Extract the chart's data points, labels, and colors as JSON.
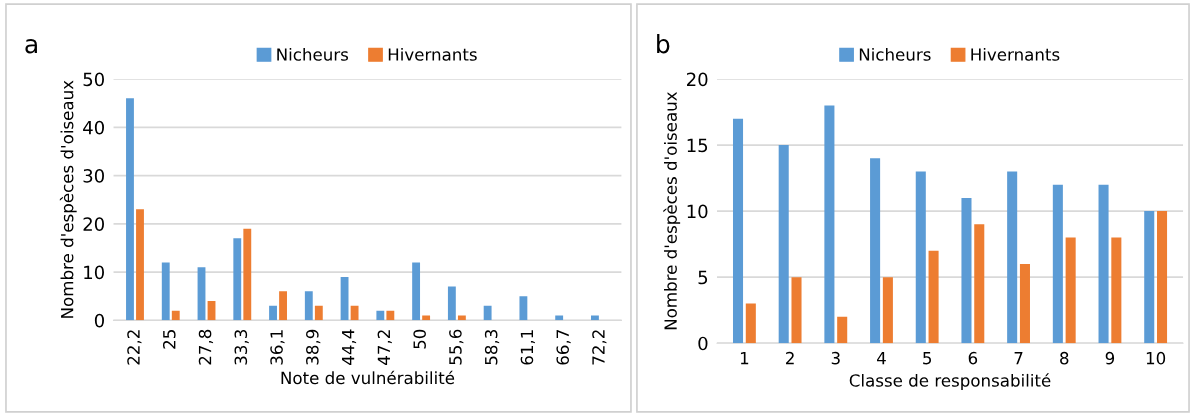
{
  "chart_data": [
    {
      "type": "bar",
      "title": "a",
      "xlabel": "Note de vulnérabilité",
      "ylabel": "Nombre d'espèces d'oiseaux",
      "categories": [
        "22,2",
        "25",
        "27,8",
        "33,3",
        "36,1",
        "38,9",
        "44,4",
        "47,2",
        "50",
        "55,6",
        "58,3",
        "61,1",
        "66,7",
        "72,2"
      ],
      "series": [
        {
          "name": "Nicheurs",
          "color": "#5b9bd5",
          "values": [
            46,
            12,
            11,
            17,
            3,
            6,
            9,
            2,
            12,
            7,
            3,
            5,
            1,
            1
          ]
        },
        {
          "name": "Hivernants",
          "color": "#ed7d31",
          "values": [
            23,
            2,
            4,
            19,
            6,
            3,
            3,
            2,
            1,
            1,
            0,
            0,
            0,
            0
          ]
        }
      ],
      "ylim": [
        0,
        50
      ],
      "yticks": [
        0,
        10,
        20,
        30,
        40,
        50
      ],
      "grid": "y",
      "legend": "top"
    },
    {
      "type": "bar",
      "title": "b",
      "xlabel": "Classe de responsabilité",
      "ylabel": "Nombre d'espèces d'oiseaux",
      "categories": [
        "1",
        "2",
        "3",
        "4",
        "5",
        "6",
        "7",
        "8",
        "9",
        "10"
      ],
      "series": [
        {
          "name": "Nicheurs",
          "color": "#5b9bd5",
          "values": [
            17,
            15,
            18,
            14,
            13,
            11,
            13,
            12,
            12,
            10
          ]
        },
        {
          "name": "Hivernants",
          "color": "#ed7d31",
          "values": [
            3,
            5,
            2,
            5,
            7,
            9,
            6,
            8,
            8,
            10
          ]
        }
      ],
      "ylim": [
        0,
        20
      ],
      "yticks": [
        0,
        5,
        10,
        15,
        20
      ],
      "grid": "y",
      "legend": "top"
    }
  ]
}
